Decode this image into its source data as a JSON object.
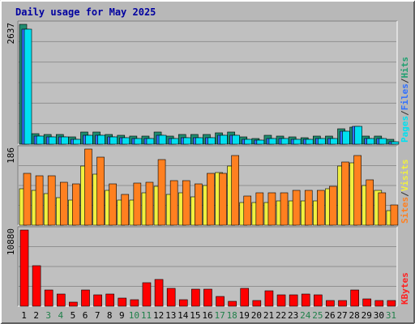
{
  "chart_data": {
    "title": "Daily usage for May 2025",
    "type": "bar",
    "days": [
      "1",
      "2",
      "3",
      "4",
      "5",
      "6",
      "7",
      "8",
      "9",
      "10",
      "11",
      "12",
      "13",
      "14",
      "15",
      "16",
      "17",
      "18",
      "19",
      "20",
      "21",
      "22",
      "23",
      "24",
      "25",
      "26",
      "27",
      "28",
      "29",
      "30",
      "31"
    ],
    "weekend_days": [
      "3",
      "4",
      "10",
      "11",
      "17",
      "18",
      "24",
      "25",
      "31"
    ],
    "panels": [
      {
        "id": "hits-panel",
        "max_label": "2637",
        "ymax": 2637,
        "legend": [
          {
            "text": "Pages",
            "color": "#00e0f0"
          },
          {
            "text": "/",
            "color": "#303030"
          },
          {
            "text": "Files",
            "color": "#3070ff"
          },
          {
            "text": "/",
            "color": "#303030"
          },
          {
            "text": "Hits",
            "color": "#20a070"
          }
        ],
        "series": [
          {
            "name": "Hits",
            "color": "#1f8c70",
            "values": [
              2637,
              230,
              220,
              220,
              160,
              260,
              260,
              220,
              190,
              180,
              180,
              270,
              180,
              210,
              210,
              210,
              250,
              270,
              160,
              130,
              190,
              180,
              160,
              150,
              170,
              170,
              330,
              380,
              180,
              170,
              100
            ]
          },
          {
            "name": "Files",
            "color": "#3070ff",
            "values": [
              2530,
              180,
              160,
              160,
              110,
              200,
              190,
              160,
              140,
              130,
              130,
              200,
              130,
              150,
              150,
              150,
              190,
              200,
              110,
              90,
              130,
              130,
              110,
              100,
              120,
              120,
              280,
              390,
              130,
              120,
              60
            ]
          },
          {
            "name": "Pages",
            "color": "#00e0f0",
            "values": [
              2530,
              180,
              160,
              160,
              110,
              200,
              190,
              160,
              140,
              130,
              130,
              200,
              130,
              150,
              150,
              150,
              190,
              200,
              110,
              90,
              130,
              130,
              110,
              100,
              120,
              120,
              280,
              390,
              130,
              120,
              60
            ]
          }
        ]
      },
      {
        "id": "visits-panel",
        "max_label": "186",
        "ymax": 186,
        "legend": [
          {
            "text": "Sites",
            "color": "#ff8020"
          },
          {
            "text": "/",
            "color": "#303030"
          },
          {
            "text": "Visits",
            "color": "#f0f040"
          }
        ],
        "series": [
          {
            "name": "Visits",
            "color": "#f0f040",
            "values": [
              90,
              85,
              78,
              68,
              62,
              145,
              125,
              85,
              62,
              62,
              80,
              95,
              75,
              80,
              70,
              96,
              128,
              145,
              55,
              55,
              55,
              60,
              60,
              60,
              60,
              90,
              145,
              153,
              97,
              85,
              35
            ]
          },
          {
            "name": "Sites",
            "color": "#ff8020",
            "values": [
              126,
              120,
              120,
              105,
              100,
              186,
              166,
              100,
              76,
              102,
              105,
              160,
              108,
              108,
              100,
              126,
              126,
              170,
              72,
              80,
              80,
              80,
              85,
              85,
              85,
              95,
              155,
              170,
              110,
              80,
              50
            ]
          }
        ]
      },
      {
        "id": "kbytes-panel",
        "max_label": "10880",
        "ymax": 10880,
        "legend": [
          {
            "text": "KBytes",
            "color": "#ff2020"
          }
        ],
        "series": [
          {
            "name": "KBytes",
            "color": "#ff0000",
            "values": [
              10880,
              5800,
              2300,
              1700,
              600,
              2300,
              1600,
              1700,
              1200,
              900,
              3400,
              3800,
              2500,
              900,
              2400,
              2400,
              1400,
              700,
              2600,
              800,
              2200,
              1600,
              1600,
              1700,
              1600,
              800,
              800,
              2300,
              1000,
              800,
              800
            ]
          }
        ]
      }
    ]
  }
}
